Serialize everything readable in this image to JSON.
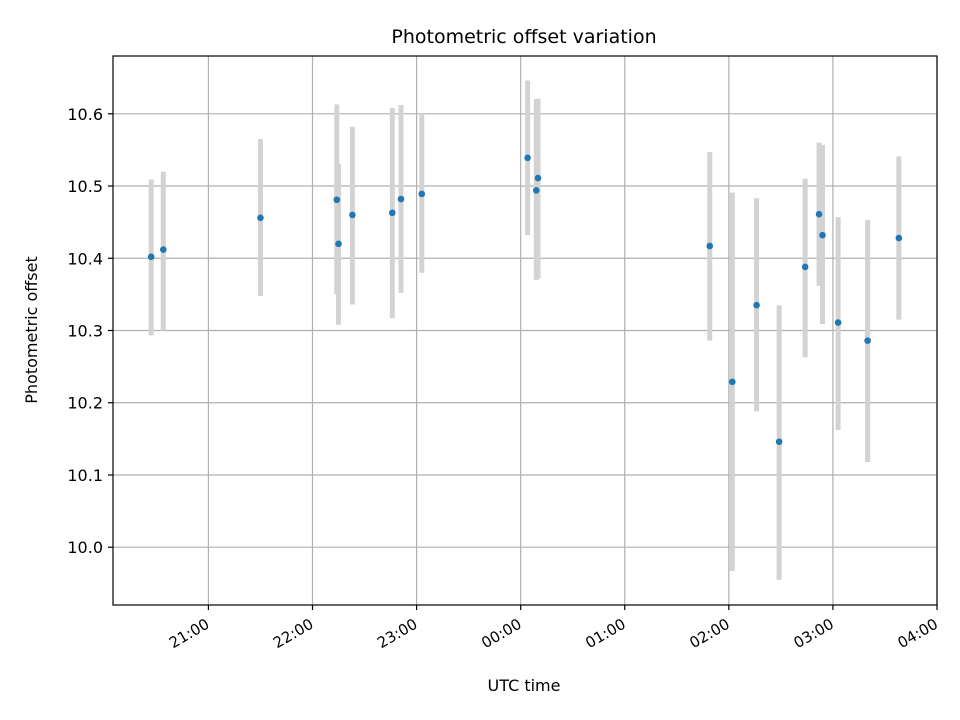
{
  "chart_data": {
    "type": "scatter",
    "title": "Photometric offset variation",
    "xlabel": "UTC time",
    "ylabel": "Photometric offset",
    "x_axis_type": "time",
    "x_ticks": [
      "21:00",
      "22:00",
      "23:00",
      "00:00",
      "01:00",
      "02:00",
      "03:00",
      "04:00"
    ],
    "y_ticks": [
      "10.0",
      "10.1",
      "10.2",
      "10.3",
      "10.4",
      "10.5",
      "10.6"
    ],
    "xlim": [
      "20:05",
      "04:00"
    ],
    "ylim": [
      9.92,
      10.68
    ],
    "grid": true,
    "colors": {
      "marker": "#1f77b4",
      "error_bar": "#d3d3d3",
      "grid": "#b0b0b0"
    },
    "series": [
      {
        "points": [
          {
            "time": "20:27",
            "y": 10.402,
            "y_low": 10.293,
            "y_high": 10.509
          },
          {
            "time": "20:34",
            "y": 10.412,
            "y_low": 10.3,
            "y_high": 10.52
          },
          {
            "time": "21:30",
            "y": 10.456,
            "y_low": 10.348,
            "y_high": 10.565
          },
          {
            "time": "22:14",
            "y": 10.481,
            "y_low": 10.35,
            "y_high": 10.613
          },
          {
            "time": "22:15",
            "y": 10.42,
            "y_low": 10.308,
            "y_high": 10.531
          },
          {
            "time": "22:23",
            "y": 10.46,
            "y_low": 10.336,
            "y_high": 10.582
          },
          {
            "time": "22:46",
            "y": 10.463,
            "y_low": 10.317,
            "y_high": 10.608
          },
          {
            "time": "22:51",
            "y": 10.482,
            "y_low": 10.352,
            "y_high": 10.612
          },
          {
            "time": "23:03",
            "y": 10.489,
            "y_low": 10.38,
            "y_high": 10.6
          },
          {
            "time": "00:04",
            "y": 10.539,
            "y_low": 10.432,
            "y_high": 10.646
          },
          {
            "time": "00:09",
            "y": 10.494,
            "y_low": 10.37,
            "y_high": 10.62
          },
          {
            "time": "00:10",
            "y": 10.511,
            "y_low": 10.372,
            "y_high": 10.621
          },
          {
            "time": "01:49",
            "y": 10.417,
            "y_low": 10.286,
            "y_high": 10.547
          },
          {
            "time": "02:02",
            "y": 10.229,
            "y_low": 9.967,
            "y_high": 10.491
          },
          {
            "time": "02:16",
            "y": 10.335,
            "y_low": 10.188,
            "y_high": 10.483
          },
          {
            "time": "02:29",
            "y": 10.146,
            "y_low": 9.955,
            "y_high": 10.335
          },
          {
            "time": "02:44",
            "y": 10.388,
            "y_low": 10.263,
            "y_high": 10.51
          },
          {
            "time": "02:52",
            "y": 10.461,
            "y_low": 10.362,
            "y_high": 10.56
          },
          {
            "time": "02:54",
            "y": 10.432,
            "y_low": 10.309,
            "y_high": 10.557
          },
          {
            "time": "03:03",
            "y": 10.311,
            "y_low": 10.162,
            "y_high": 10.457
          },
          {
            "time": "03:20",
            "y": 10.286,
            "y_low": 10.118,
            "y_high": 10.453
          },
          {
            "time": "03:38",
            "y": 10.428,
            "y_low": 10.315,
            "y_high": 10.541
          }
        ]
      }
    ]
  }
}
